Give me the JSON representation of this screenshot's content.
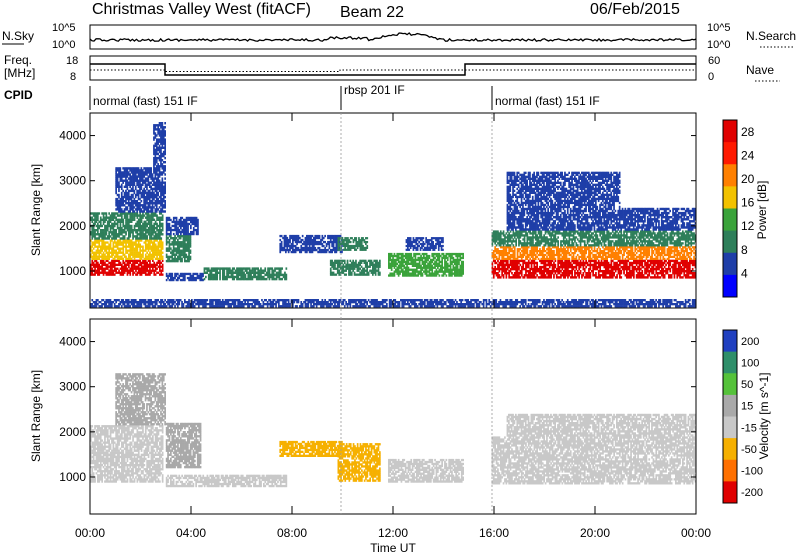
{
  "header": {
    "station": "Christmas Valley West (fitACF)",
    "beam": "Beam 22",
    "date": "06/Feb/2015"
  },
  "top_panel": {
    "left_label": "N.Sky",
    "right_label": "N.Search",
    "left_ticks": [
      "10^5",
      "10^0"
    ],
    "right_ticks": [
      "10^5",
      "10^0"
    ]
  },
  "freq_panel": {
    "left_label_1": "Freq.",
    "left_label_2": "[MHz]",
    "right_label": "Nave",
    "left_ticks": [
      "18",
      "8"
    ],
    "right_ticks": [
      "60",
      "0"
    ]
  },
  "cpid": {
    "label": "CPID",
    "modes": [
      {
        "start_hour": 0,
        "label": "normal (fast) 151 IF"
      },
      {
        "start_hour": 10,
        "label": "rbsp 201 IF"
      },
      {
        "start_hour": 16,
        "label": "normal (fast) 151 IF"
      }
    ]
  },
  "chart_data": [
    {
      "type": "heatmap",
      "title": "Power",
      "ylabel": "Slant Range [km]",
      "xlabel": "Time UT",
      "x_ticks": [
        "00:00",
        "04:00",
        "08:00",
        "12:00",
        "16:00",
        "20:00",
        "00:00"
      ],
      "xlim_hours": [
        0,
        24
      ],
      "ylim": [
        180,
        4500
      ],
      "y_ticks": [
        1000,
        2000,
        3000,
        4000
      ],
      "colorbar": {
        "label": "Power [dB]",
        "ticks": [
          4,
          8,
          12,
          16,
          20,
          24,
          28
        ],
        "range": [
          0,
          30
        ],
        "colors": [
          "#0000ff",
          "#1e3ea8",
          "#2e7f5a",
          "#3aa33a",
          "#f2c200",
          "#ff8000",
          "#ff1a00",
          "#e00000"
        ]
      },
      "scatter_regions": [
        {
          "t0": 0.0,
          "t1": 2.9,
          "r0": 900,
          "r1": 1250,
          "level": 27
        },
        {
          "t0": 0.0,
          "t1": 2.9,
          "r0": 1250,
          "r1": 1700,
          "level": 18
        },
        {
          "t0": 0.0,
          "t1": 2.9,
          "r0": 1700,
          "r1": 2300,
          "level": 9
        },
        {
          "t0": 1.0,
          "t1": 3.0,
          "r0": 2300,
          "r1": 3300,
          "level": 7
        },
        {
          "t0": 2.5,
          "t1": 3.0,
          "r0": 3300,
          "r1": 4300,
          "level": 4
        },
        {
          "t0": 3.0,
          "t1": 4.0,
          "r0": 1200,
          "r1": 1800,
          "level": 10
        },
        {
          "t0": 3.0,
          "t1": 4.3,
          "r0": 1800,
          "r1": 2200,
          "level": 6
        },
        {
          "t0": 3.0,
          "t1": 4.5,
          "r0": 780,
          "r1": 960,
          "level": 7
        },
        {
          "t0": 4.5,
          "t1": 7.8,
          "r0": 800,
          "r1": 1080,
          "level": 9
        },
        {
          "t0": 7.5,
          "t1": 10.0,
          "r0": 1400,
          "r1": 1800,
          "level": 7
        },
        {
          "t0": 9.8,
          "t1": 11.0,
          "r0": 1450,
          "r1": 1750,
          "level": 10
        },
        {
          "t0": 9.5,
          "t1": 11.5,
          "r0": 900,
          "r1": 1250,
          "level": 9
        },
        {
          "t0": 11.8,
          "t1": 14.8,
          "r0": 880,
          "r1": 1400,
          "level": 13
        },
        {
          "t0": 12.5,
          "t1": 14.0,
          "r0": 1450,
          "r1": 1750,
          "level": 7
        },
        {
          "t0": 15.9,
          "t1": 24.0,
          "r0": 840,
          "r1": 1250,
          "level": 27
        },
        {
          "t0": 15.9,
          "t1": 24.0,
          "r0": 1250,
          "r1": 1550,
          "level": 19
        },
        {
          "t0": 15.9,
          "t1": 24.0,
          "r0": 1550,
          "r1": 1900,
          "level": 10
        },
        {
          "t0": 16.5,
          "t1": 24.0,
          "r0": 1900,
          "r1": 2400,
          "level": 6
        },
        {
          "t0": 16.5,
          "t1": 21.0,
          "r0": 2400,
          "r1": 3200,
          "level": 4
        },
        {
          "t0": 0.0,
          "t1": 24.0,
          "r0": 200,
          "r1": 380,
          "level": 5
        }
      ]
    },
    {
      "type": "heatmap",
      "title": "Velocity",
      "ylabel": "Slant Range [km]",
      "xlabel": "Time UT",
      "x_ticks": [
        "00:00",
        "04:00",
        "08:00",
        "12:00",
        "16:00",
        "20:00",
        "00:00"
      ],
      "xlim_hours": [
        0,
        24
      ],
      "ylim": [
        180,
        4500
      ],
      "y_ticks": [
        1000,
        2000,
        3000,
        4000
      ],
      "colorbar": {
        "label": "Velocity [m s^-1]",
        "ticks": [
          "200",
          "100",
          "50",
          "15",
          "-15",
          "-50",
          "-100",
          "-200"
        ],
        "colors": [
          "#2040c0",
          "#2f8f6a",
          "#55c23a",
          "#a9a9a9",
          "#c8c8c8",
          "#f6b000",
          "#ff7000",
          "#e00000"
        ]
      },
      "scatter_regions": [
        {
          "t0": 0.0,
          "t1": 2.9,
          "r0": 880,
          "r1": 2150,
          "level": "-15"
        },
        {
          "t0": 1.0,
          "t1": 3.0,
          "r0": 2150,
          "r1": 3300,
          "level": "15"
        },
        {
          "t0": 3.0,
          "t1": 4.4,
          "r0": 1200,
          "r1": 2200,
          "level": "15"
        },
        {
          "t0": 3.0,
          "t1": 7.8,
          "r0": 780,
          "r1": 1050,
          "level": "-15"
        },
        {
          "t0": 7.5,
          "t1": 10.0,
          "r0": 1450,
          "r1": 1800,
          "level": "-50"
        },
        {
          "t0": 9.8,
          "t1": 11.5,
          "r0": 900,
          "r1": 1750,
          "level": "-50"
        },
        {
          "t0": 11.8,
          "t1": 14.8,
          "r0": 880,
          "r1": 1400,
          "level": "-15"
        },
        {
          "t0": 15.9,
          "t1": 24.0,
          "r0": 840,
          "r1": 1900,
          "level": "-15"
        },
        {
          "t0": 16.5,
          "t1": 24.0,
          "r0": 1900,
          "r1": 2400,
          "level": "-15"
        }
      ]
    }
  ]
}
